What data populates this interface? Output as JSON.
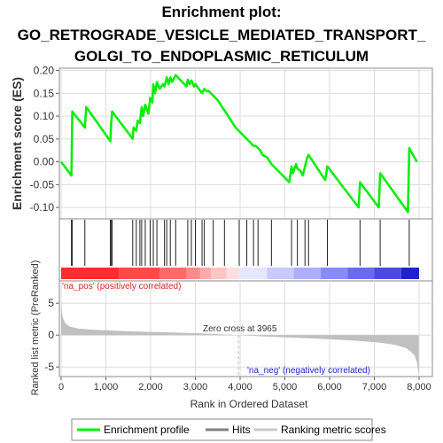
{
  "chart_data": {
    "type": "line",
    "title_lines": [
      "Enrichment plot:",
      "GO_RETROGRADE_VESICLE_MEDIATED_TRANSPORT_",
      "GOLGI_TO_ENDOPLASMIC_RETICULUM"
    ],
    "es_panel": {
      "ylabel": "Enrichment score (ES)",
      "ylim": [
        -0.125,
        0.205
      ],
      "y_ticks": [
        -0.1,
        -0.05,
        0.0,
        0.05,
        0.1,
        0.15,
        0.2
      ],
      "y_tick_labels": [
        "-0.10",
        "-0.05",
        "0.00",
        "0.05",
        "0.10",
        "0.15",
        "0.20"
      ],
      "xlim": [
        0,
        8000
      ],
      "grid": true,
      "color": "#00ee00",
      "x": [
        0,
        230,
        250,
        530,
        560,
        1100,
        1115,
        1140,
        1600,
        1620,
        1680,
        1710,
        1760,
        1800,
        1830,
        1880,
        1950,
        1990,
        2040,
        2060,
        2100,
        2140,
        2200,
        2280,
        2310,
        2360,
        2400,
        2440,
        2480,
        2560,
        2800,
        2830,
        2870,
        2910,
        2970,
        3000,
        3150,
        3200,
        3250,
        3300,
        3400,
        3500,
        3600,
        3700,
        3800,
        3900,
        4000,
        4100,
        4200,
        4300,
        4350,
        4450,
        4500,
        4600,
        4700,
        4800,
        4900,
        5000,
        5100,
        5150,
        5180,
        5250,
        5280,
        5350,
        5400,
        5500,
        5530,
        5900,
        5950,
        6650,
        6680,
        7100,
        7130,
        7750,
        7780,
        7950
      ],
      "y": [
        0.0,
        -0.03,
        0.11,
        0.075,
        0.12,
        0.045,
        0.08,
        0.11,
        0.05,
        0.075,
        0.068,
        0.09,
        0.085,
        0.12,
        0.1,
        0.125,
        0.105,
        0.14,
        0.13,
        0.17,
        0.15,
        0.175,
        0.16,
        0.17,
        0.165,
        0.185,
        0.17,
        0.185,
        0.175,
        0.19,
        0.165,
        0.18,
        0.17,
        0.178,
        0.165,
        0.17,
        0.15,
        0.16,
        0.155,
        0.155,
        0.145,
        0.135,
        0.12,
        0.105,
        0.09,
        0.075,
        0.065,
        0.055,
        0.045,
        0.035,
        0.035,
        0.025,
        0.015,
        0.01,
        -0.005,
        -0.015,
        -0.025,
        -0.035,
        -0.045,
        -0.01,
        -0.025,
        -0.005,
        -0.015,
        -0.02,
        -0.03,
        0.01,
        0.015,
        -0.04,
        -0.01,
        -0.1,
        -0.045,
        -0.1,
        -0.025,
        -0.11,
        0.03,
        0.0
      ]
    },
    "hits_panel": {
      "hits": [
        230,
        250,
        530,
        1100,
        1115,
        1140,
        1600,
        1680,
        1760,
        1800,
        1880,
        1990,
        2060,
        2140,
        2310,
        2360,
        2440,
        2560,
        2830,
        2910,
        3000,
        3150,
        3200,
        3400,
        3650,
        3980,
        4150,
        4300,
        4400,
        4700,
        5150,
        5280,
        5450,
        5530,
        5950,
        6680,
        7130,
        7780
      ]
    },
    "heatmap": {
      "colors": [
        "#ff2e2e",
        "#ff4a4a",
        "#ff6a6a",
        "#ff8a8a",
        "#ffaaaa",
        "#ffc4c4",
        "#ffdede",
        "#e6e6ff",
        "#cacaff",
        "#aeaeff",
        "#8a8aff",
        "#6a6aee",
        "#4a4ae0",
        "#2222cc"
      ],
      "stops": [
        0,
        1300,
        2200,
        2800,
        3100,
        3350,
        3700,
        3965,
        4600,
        5200,
        5800,
        6400,
        7000,
        7600,
        8000
      ]
    },
    "metric_panel": {
      "ylabel": "Ranked list metric (PreRanked)",
      "ylim": [
        -6.5,
        8.5
      ],
      "y_ticks": [
        -5,
        0,
        5
      ],
      "y_tick_labels": [
        "-5",
        "0",
        "5"
      ],
      "fill_color": "#c0c0c0",
      "x": [
        0,
        20,
        50,
        100,
        200,
        400,
        700,
        1000,
        1500,
        2000,
        2500,
        3000,
        3500,
        3965,
        4500,
        5000,
        5500,
        6000,
        6500,
        7000,
        7300,
        7500,
        7700,
        7800,
        7900,
        7950,
        7990
      ],
      "y": [
        5.6,
        3.4,
        2.5,
        1.8,
        1.3,
        1.0,
        0.85,
        0.75,
        0.6,
        0.5,
        0.4,
        0.3,
        0.15,
        0.0,
        -0.2,
        -0.35,
        -0.5,
        -0.65,
        -0.85,
        -1.1,
        -1.35,
        -1.6,
        -2.0,
        -2.5,
        -3.2,
        -4.2,
        -6.3
      ],
      "pos_label": "'na_pos' (positively correlated)",
      "neg_label": "'na_neg' (negatively correlated)",
      "zero_cross_label": "Zero cross at 3965",
      "zero_cross": 3965
    },
    "xlabel": "Rank in Ordered Dataset",
    "x_ticks": [
      0,
      1000,
      2000,
      3000,
      4000,
      5000,
      6000,
      7000,
      8000
    ],
    "x_tick_labels": [
      "0",
      "1,000",
      "2,000",
      "3,000",
      "4,000",
      "5,000",
      "6,000",
      "7,000",
      "8,000"
    ],
    "legend": {
      "placement": "bottom",
      "entries": [
        {
          "label": "Enrichment profile",
          "color": "#00ee00"
        },
        {
          "label": "Hits",
          "color": "#808080"
        },
        {
          "label": "Ranking metric scores",
          "color": "#c8c8c8"
        }
      ]
    }
  }
}
